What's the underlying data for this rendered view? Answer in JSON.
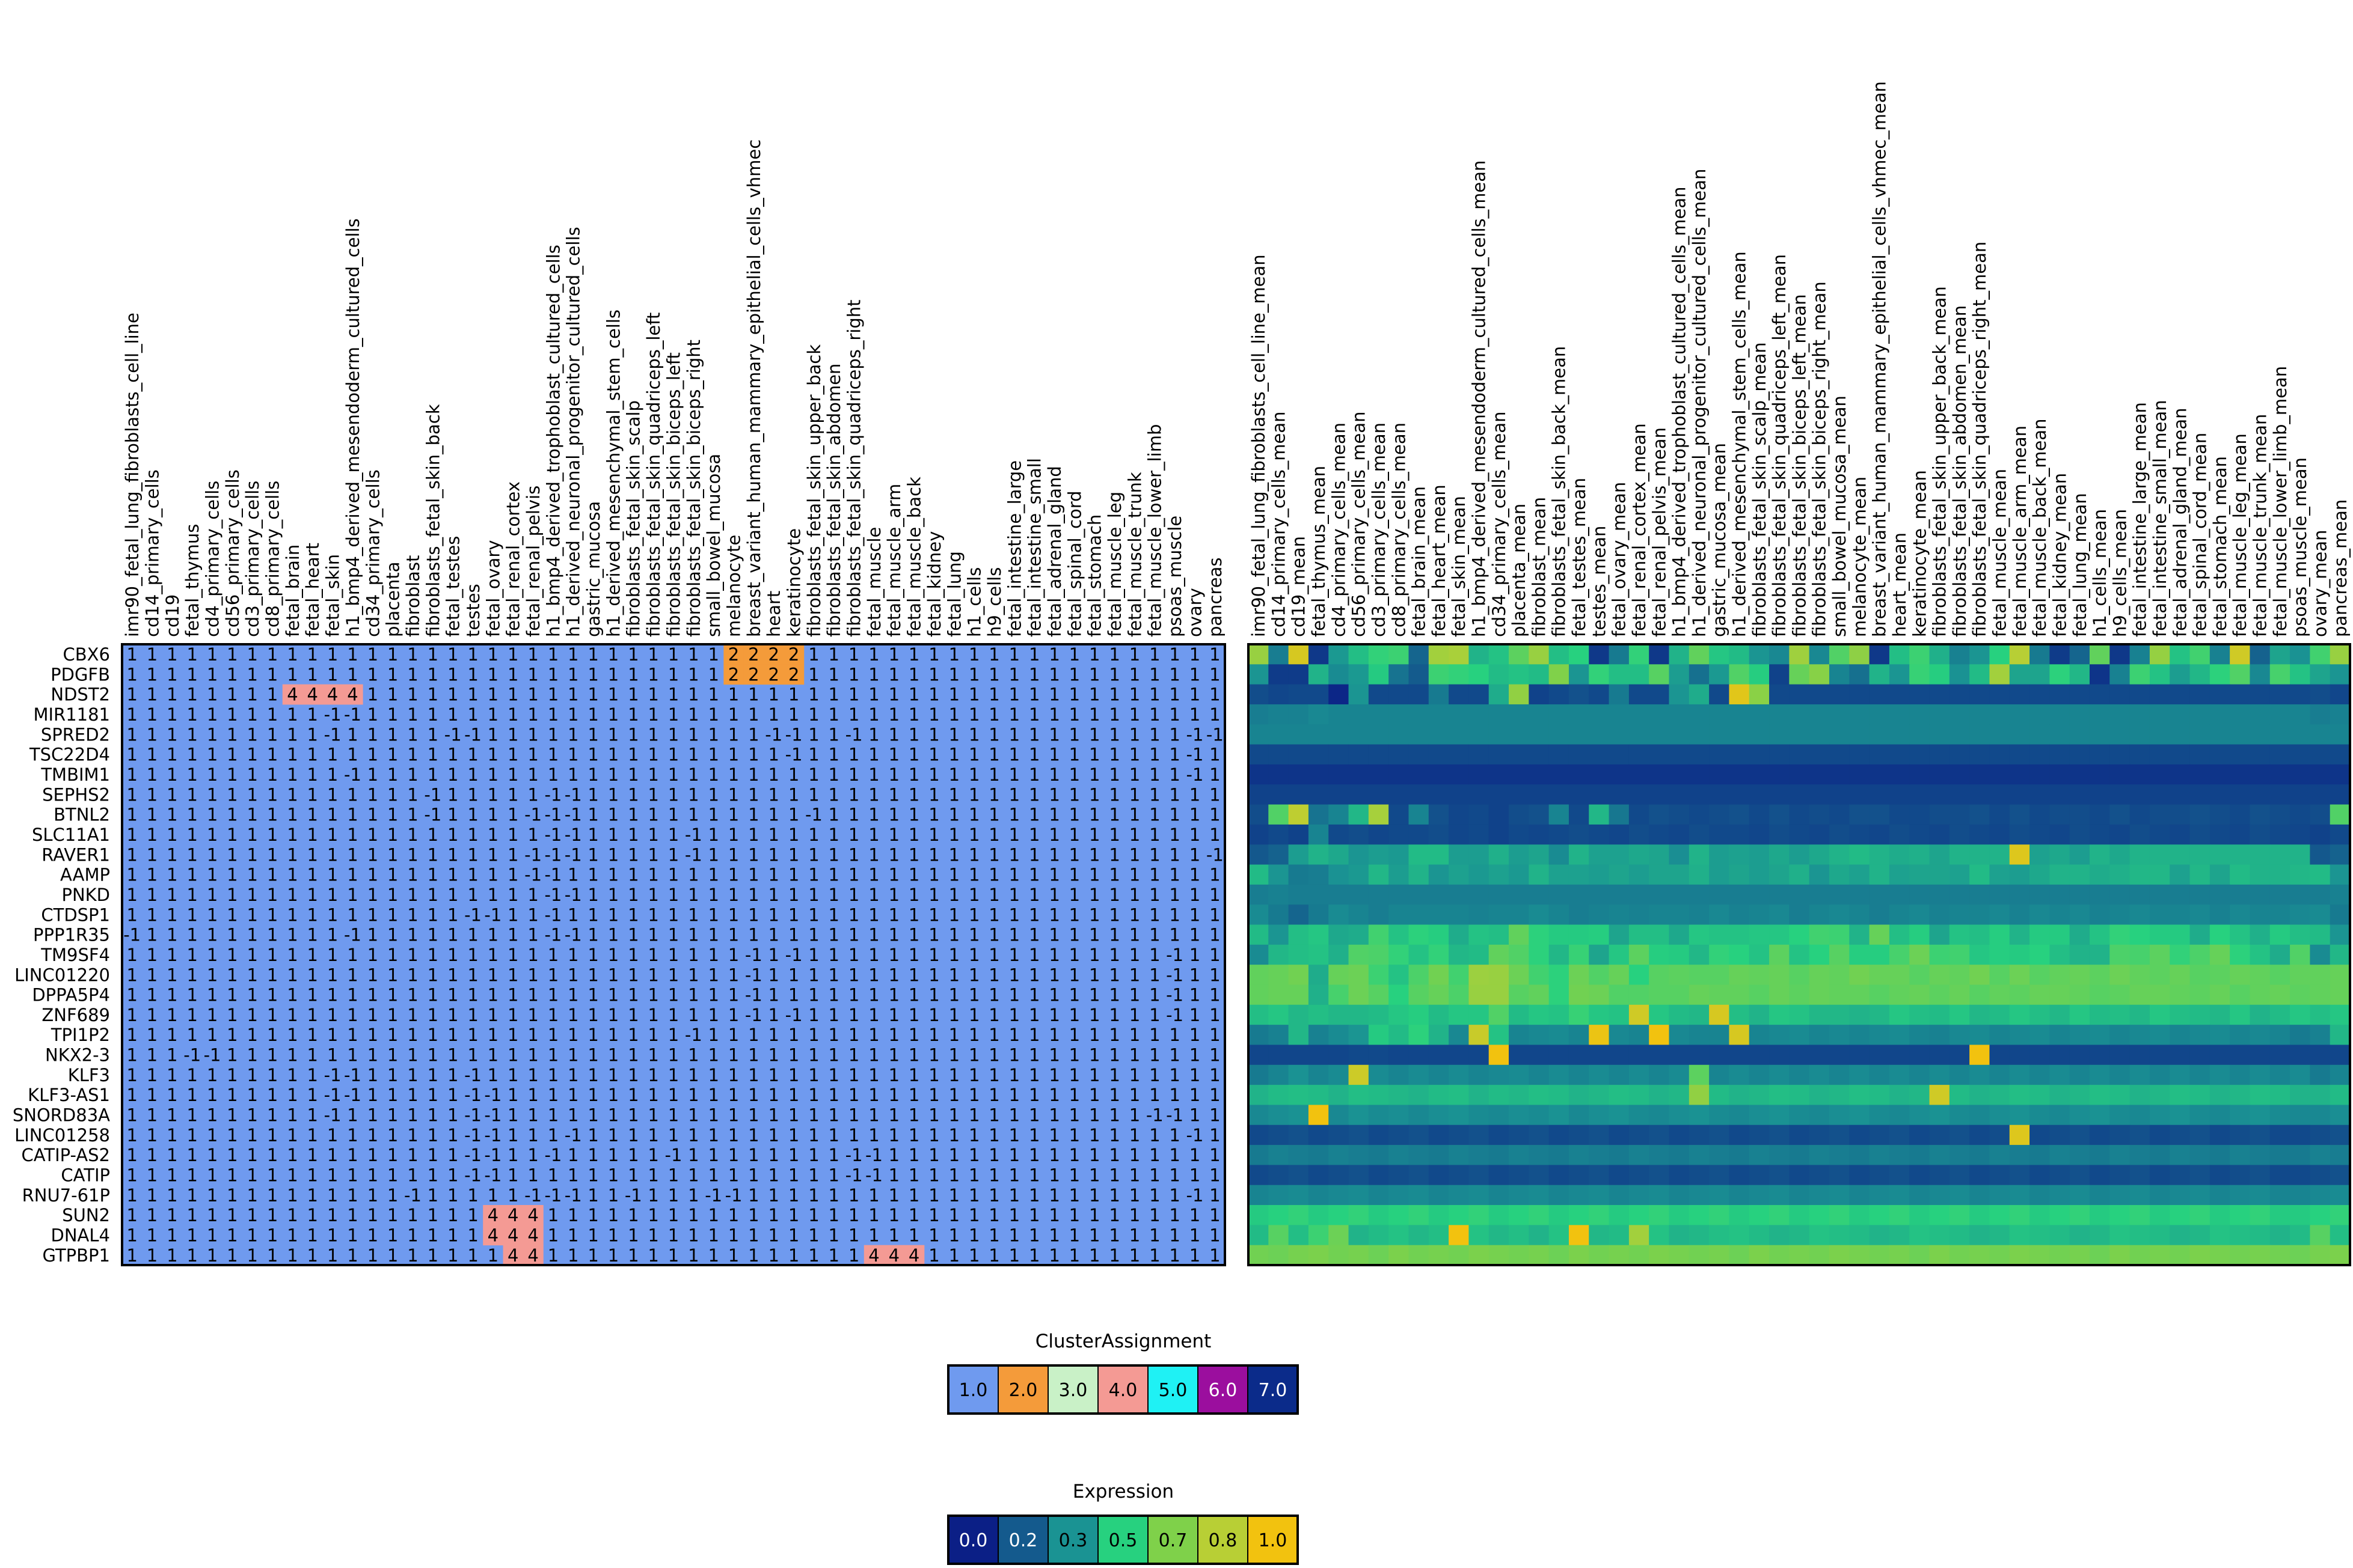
{
  "chart_data": [
    {
      "type": "heatmap",
      "title": "",
      "rows": [
        "CBX6",
        "PDGFB",
        "NDST2",
        "MIR1181",
        "SPRED2",
        "TSC22D4",
        "TMBIM1",
        "SEPHS2",
        "BTNL2",
        "SLC11A1",
        "RAVER1",
        "AAMP",
        "PNKD",
        "CTDSP1",
        "PPP1R35",
        "TM9SF4",
        "LINC01220",
        "DPPA5P4",
        "ZNF689",
        "TPI1P2",
        "NKX2-3",
        "KLF3",
        "KLF3-AS1",
        "SNORD83A",
        "LINC01258",
        "CATIP-AS2",
        "CATIP",
        "RNU7-61P",
        "SUN2",
        "DNAL4",
        "GTPBP1"
      ],
      "columns": [
        "imr90_fetal_lung_fibroblasts_cell_line",
        "cd14_primary_cells",
        "cd19",
        "fetal_thymus",
        "cd4_primary_cells",
        "cd56_primary_cells",
        "cd3_primary_cells",
        "cd8_primary_cells",
        "fetal_brain",
        "fetal_heart",
        "fetal_skin",
        "h1_bmp4_derived_mesendoderm_cultured_cells",
        "cd34_primary_cells",
        "placenta",
        "fibroblast",
        "fibroblasts_fetal_skin_back",
        "fetal_testes",
        "testes",
        "fetal_ovary",
        "fetal_renal_cortex",
        "fetal_renal_pelvis",
        "h1_bmp4_derived_trophoblast_cultured_cells",
        "h1_derived_neuronal_progenitor_cultured_cells",
        "gastric_mucosa",
        "h1_derived_mesenchymal_stem_cells",
        "fibroblasts_fetal_skin_scalp",
        "fibroblasts_fetal_skin_quadriceps_left",
        "fibroblasts_fetal_skin_biceps_left",
        "fibroblasts_fetal_skin_biceps_right",
        "small_bowel_mucosa",
        "melanocyte",
        "breast_variant_human_mammary_epithelial_cells_vhmec",
        "heart",
        "keratinocyte",
        "fibroblasts_fetal_skin_upper_back",
        "fibroblasts_fetal_skin_abdomen",
        "fibroblasts_fetal_skin_quadriceps_right",
        "fetal_muscle",
        "fetal_muscle_arm",
        "fetal_muscle_back",
        "fetal_kidney",
        "fetal_lung",
        "h1_cells",
        "h9_cells",
        "fetal_intestine_large",
        "fetal_intestine_small",
        "fetal_adrenal_gland",
        "fetal_spinal_cord",
        "fetal_stomach",
        "fetal_muscle_leg",
        "fetal_muscle_trunk",
        "fetal_muscle_lower_limb",
        "psoas_muscle",
        "ovary",
        "pancreas"
      ],
      "cell_label_default": "1",
      "cell_label_exceptions": [
        [
          0,
          30,
          "2"
        ],
        [
          0,
          31,
          "2"
        ],
        [
          0,
          32,
          "2"
        ],
        [
          0,
          33,
          "2"
        ],
        [
          1,
          30,
          "2"
        ],
        [
          1,
          31,
          "2"
        ],
        [
          1,
          32,
          "2"
        ],
        [
          1,
          33,
          "2"
        ],
        [
          2,
          8,
          "4"
        ],
        [
          2,
          9,
          "4"
        ],
        [
          2,
          10,
          "4"
        ],
        [
          2,
          11,
          "4"
        ],
        [
          28,
          18,
          "4"
        ],
        [
          28,
          19,
          "4"
        ],
        [
          28,
          20,
          "4"
        ],
        [
          29,
          18,
          "4"
        ],
        [
          29,
          19,
          "4"
        ],
        [
          29,
          20,
          "4"
        ],
        [
          30,
          19,
          "4"
        ],
        [
          30,
          20,
          "4"
        ],
        [
          30,
          37,
          "4"
        ],
        [
          30,
          38,
          "4"
        ],
        [
          30,
          39,
          "4"
        ]
      ],
      "cell_cluster_exceptions": [
        [
          0,
          30,
          2
        ],
        [
          0,
          31,
          2
        ],
        [
          0,
          32,
          2
        ],
        [
          0,
          33,
          2
        ],
        [
          1,
          30,
          2
        ],
        [
          1,
          31,
          2
        ],
        [
          1,
          32,
          2
        ],
        [
          1,
          33,
          2
        ],
        [
          2,
          8,
          4
        ],
        [
          2,
          9,
          4
        ],
        [
          2,
          10,
          4
        ],
        [
          2,
          11,
          4
        ],
        [
          28,
          18,
          4
        ],
        [
          28,
          19,
          4
        ],
        [
          28,
          20,
          4
        ],
        [
          29,
          18,
          4
        ],
        [
          29,
          19,
          4
        ],
        [
          29,
          20,
          4
        ],
        [
          30,
          19,
          4
        ],
        [
          30,
          20,
          4
        ],
        [
          30,
          37,
          4
        ],
        [
          30,
          38,
          4
        ],
        [
          30,
          39,
          4
        ]
      ],
      "negative_cells": [
        [
          3,
          10
        ],
        [
          3,
          11
        ],
        [
          4,
          10
        ],
        [
          4,
          16
        ],
        [
          4,
          17
        ],
        [
          4,
          32
        ],
        [
          4,
          33
        ],
        [
          4,
          36
        ],
        [
          4,
          53
        ],
        [
          4,
          54
        ],
        [
          5,
          33
        ],
        [
          5,
          53
        ],
        [
          6,
          11
        ],
        [
          6,
          53
        ],
        [
          7,
          15
        ],
        [
          7,
          21
        ],
        [
          7,
          22
        ],
        [
          8,
          15
        ],
        [
          8,
          20
        ],
        [
          8,
          21
        ],
        [
          8,
          22
        ],
        [
          8,
          34
        ],
        [
          9,
          21
        ],
        [
          9,
          22
        ],
        [
          9,
          28
        ],
        [
          10,
          20
        ],
        [
          10,
          21
        ],
        [
          10,
          22
        ],
        [
          10,
          28
        ],
        [
          10,
          54
        ],
        [
          11,
          20
        ],
        [
          11,
          21
        ],
        [
          12,
          21
        ],
        [
          12,
          22
        ],
        [
          13,
          17
        ],
        [
          13,
          18
        ],
        [
          13,
          21
        ],
        [
          14,
          0
        ],
        [
          14,
          11
        ],
        [
          14,
          21
        ],
        [
          14,
          22
        ],
        [
          15,
          31
        ],
        [
          15,
          33
        ],
        [
          15,
          52
        ],
        [
          16,
          31
        ],
        [
          16,
          52
        ],
        [
          17,
          31
        ],
        [
          17,
          52
        ],
        [
          18,
          31
        ],
        [
          18,
          33
        ],
        [
          18,
          52
        ],
        [
          19,
          28
        ],
        [
          20,
          3
        ],
        [
          20,
          4
        ],
        [
          21,
          10
        ],
        [
          21,
          11
        ],
        [
          21,
          17
        ],
        [
          22,
          10
        ],
        [
          22,
          11
        ],
        [
          22,
          17
        ],
        [
          22,
          18
        ],
        [
          23,
          10
        ],
        [
          23,
          17
        ],
        [
          23,
          18
        ],
        [
          23,
          51
        ],
        [
          23,
          52
        ],
        [
          24,
          17
        ],
        [
          24,
          18
        ],
        [
          24,
          22
        ],
        [
          24,
          53
        ],
        [
          25,
          17
        ],
        [
          25,
          18
        ],
        [
          25,
          21
        ],
        [
          25,
          27
        ],
        [
          25,
          36
        ],
        [
          25,
          37
        ],
        [
          26,
          17
        ],
        [
          26,
          18
        ],
        [
          26,
          36
        ],
        [
          26,
          37
        ],
        [
          27,
          14
        ],
        [
          27,
          20
        ],
        [
          27,
          21
        ],
        [
          27,
          22
        ],
        [
          27,
          25
        ],
        [
          27,
          29
        ],
        [
          27,
          30
        ],
        [
          27,
          53
        ]
      ]
    },
    {
      "type": "heatmap",
      "title": "",
      "columns": [
        "imr90_fetal_lung_fibroblasts_cell_line_mean",
        "cd14_primary_cells_mean",
        "cd19_mean",
        "fetal_thymus_mean",
        "cd4_primary_cells_mean",
        "cd56_primary_cells_mean",
        "cd3_primary_cells_mean",
        "cd8_primary_cells_mean",
        "fetal_brain_mean",
        "fetal_heart_mean",
        "fetal_skin_mean",
        "h1_bmp4_derived_mesendoderm_cultured_cells_mean",
        "cd34_primary_cells_mean",
        "placenta_mean",
        "fibroblast_mean",
        "fibroblasts_fetal_skin_back_mean",
        "fetal_testes_mean",
        "testes_mean",
        "fetal_ovary_mean",
        "fetal_renal_cortex_mean",
        "fetal_renal_pelvis_mean",
        "h1_bmp4_derived_trophoblast_cultured_cells_mean",
        "h1_derived_neuronal_progenitor_cultured_cells_mean",
        "gastric_mucosa_mean",
        "h1_derived_mesenchymal_stem_cells_mean",
        "fibroblasts_fetal_skin_scalp_mean",
        "fibroblasts_fetal_skin_quadriceps_left_mean",
        "fibroblasts_fetal_skin_biceps_left_mean",
        "fibroblasts_fetal_skin_biceps_right_mean",
        "small_bowel_mucosa_mean",
        "melanocyte_mean",
        "breast_variant_human_mammary_epithelial_cells_vhmec_mean",
        "heart_mean",
        "keratinocyte_mean",
        "fibroblasts_fetal_skin_upper_back_mean",
        "fibroblasts_fetal_skin_abdomen_mean",
        "fibroblasts_fetal_skin_quadriceps_right_mean",
        "fetal_muscle_mean",
        "fetal_muscle_arm_mean",
        "fetal_muscle_back_mean",
        "fetal_kidney_mean",
        "fetal_lung_mean",
        "h1_cells_mean",
        "h9_cells_mean",
        "fetal_intestine_large_mean",
        "fetal_intestine_small_mean",
        "fetal_adrenal_gland_mean",
        "fetal_spinal_cord_mean",
        "fetal_stomach_mean",
        "fetal_muscle_leg_mean",
        "fetal_muscle_trunk_mean",
        "fetal_muscle_lower_limb_mean",
        "psoas_muscle_mean",
        "ovary_mean",
        "pancreas_mean"
      ],
      "values_rows": [
        "4a1b5c07232d3436144d4f2a2e3c4a2d32071a34072a3d2f2c221e4c1e3a47072d36291c2232531a08143d071c492e371c5a13262137",
        "2208082a1f233018113634322c2e2c4322342d2d3b2417233a310a3e451d172a223531212c4d2626332b061c362e242b333a1e382e26",
        "0d0b0c0c02220c0c0c1a0c0c28480a0c0e0c1a0c0c22280c5f460c0c0c0c0c0c0c0c0c0c0c0c0c0c0c0c0c0c0c0c0c0c0c0c0c0c0c",
        "1b1c1c1e1d1d1d1d1d1d1d1d1d1d1d1d1d1d1d1d1d1d1d1d1d1d1d1d1d1d1d1d1d1d1d1d1d1d1d1d1d1d1d1d1d1d1d1d1d1d1d1d1d",
        "1d1d1d1d1d1d1d1d1d1d1d1d1d1d1d1d1d1d1d1d1d1d1d1d1d1d1d1d1d1d1d1d1d1d1d1d1d1d1d1d1d1d1d1d1d1d1d1d1d1d1d1d1d",
        "0c0c0c0c0c0c0c0c0c0c0c0c0c0c0c0c0c0c0c0c0c0c0c0c0c0c0c0c0c0c0c0c0c0c0c0c0c0c0c0c0c0c0c0c0c0c0c0c0c0c0c0c0c",
        "0606060606060606060606060606060606060606060606060606060606060606060606060606060606060606060606060606060606",
        "0a0a0a0a0a0a0a0a0a0a0a0a0a0a0a0a0a0a0a0a0a0a0a0a0a0a0a0a0a0a0a0a0a0a0a0a0a0a0a0a0a0a0a0a0a0a0a0a0a0a0a0a0a",
        "0d3a55181d2b4e0c1d0e0b0c0a0d0e1d0c2b190c0e0d0c0d0e0c0e0c0d0c0e0e0c0c0d0d0e0c0e0c0d0d0c0e0c0d0d0e0d0c0e0d0c",
        "0a0c0a1d0c0d0b0c0c0d0b0c0a0c0b0c0d0c0b0d0c0b0d0c0c0b0d0c0b0d0c0b0d0c0b0d0c0b0d0c0b0d0c0b0d0c0b0d0c0b0d0c0b",
        "1013242a272224232c2c24242924261f2a25252726202a2425242724272a2c2a2829262a2a2a5e2527242a272a2a2a2a2a2a2a2a2a",
        "2c221a1b21232b242a22252325232a252524262426262924262426292227252a252626252c2524272a2a28292b2b252b262c2a2a2b",
        "1b1c1b1b1b1b1b1b1b1b1b1b1b1b1b1b1b1b1b1b1b1b1b1b1b1b1b1b1b1b1b1b1b1b1b1b1b1b1b1b1b1b1b1b1b1b1b1b1b1b1b1b1b",
        "1f1a141a1f1d1b1d1d1d1d1c1d1d1f1d1b1c1d1c1d1d1c1e1c1d1e1b1d1e1d1b1d1e1c1d1d1e1c1e1d1e1c1d1e1d1d1e1c1e1d1d1e",
        "2c222d2f2728372e3331282e2d3d33303031262d2d272f2e2e2f2f3237362a3e2d31262e2d312a3030282e3432303028322e29302d",
        "1f2b2d2e293a39342e342b2c3d3a332b35262f3c31302b34322e3c2e323b3131383f36372f3130322d2a2a39383c34393e332e283a",
        "3d3e40283e3f362e3940374b4a3f37333f3a3e323b3c3b3b3e3d3e3b3e3d403e3e3b3e3d403b3f3b3d3e3c3f3d3c3e3b3c3e3d3b3d",
        "3d3e3e29383f3b323b3e394a4a3b3d33403f3a3a3b3b3e3d3d3b3e3c3e3d3d3b3d3e3c3e3b3d3c3e3e3d3b3c3e3e3d3c3e3b3d3e3c",
        "2d2f2b2d2b2b2c2f312c2f2f3a2c2f2e352f2e5a2f2c2b5c2d2a2f2e2b2b2a2b2f2d2c2f2b2c2f2d2b2f2c2d2b2f2d2c2b2f2a2c2f",
        "1a1c2b1c1f22302c332a1e582e1d1e1f1d621e1d661e1d1d5c1d1e1f1d1e1d1e1f1d1c1e1f1d1e1f1d1e1f1d1e1f1d1e1f1d1e1d",
        "0b0b0b0b0b0c0c0b0b0b0b0b6b0b0b0b0b0b0b0b0b0b0b0b0b0b0b0b0b0b0b0b0b0b0b0b6c0b0b0b0b0b0b0b0b0b0b0b0b0b0b0b",
        "1a1d211d1f591f1d1f1d1f1d1e1f1d1f1d1f1d1f1d1f3c1d1f1d1f1d1f1d1f1d1f1d1f1d1f1d1f1d1f1d1f1d1f1d1f1d1f1d1f1d1f",
        "2a2c2d2c2a2d2c2b2a2c2d2a2c2b2d2c2a2b2d2c2a2b482c2a2b2d2c2a2b2d2c2a2b5a2c2a2b2d2c2a2b2d2c2a2b2d2c2a2b2d2c2a",
        "1e20216c1e211f201e20211f1e201f211e20211f1e20211f1e20211f1e20211f1e20211f1e20211f1e20211f1e20211f1e20211f1e",
        "0c0d0e0c0d0e0c0d0e0c0d0e0c0d0e0c0d0e0c0d0e0c0d0e0c0d0e0c0d0e0c0d0e0c0d0e0c0d5e0c0d0e0c0d0e0c0d0e0c0d0e0c",
        "1a1c1b1a1c1b1a1c1b1a1c1b1a1c1b1a1c1b1a1c1b1a1c1b1a1c1b1a1c1b1a1c1b1a1c1b1a1c1b1a1c1b1a1c1b1a1c1b1a1c1b1a",
        "0c0d0e0c0d0e0c0d0e0c0d0e0c0d0e0c0d0e0c0d0e0c0d0e0c0d0e0c0d0e0c0d0e0c0d0e0c0d0e0c0d0e0c0d0e0c0d0e0c0d0e0c",
        "1d1e1f1d1e1f1d1e1f1d1e1f1d1e1f1d1e1f1d1e1f1d1e1f1d1e1f1d1e1f1d1e1f1d1e1f1d1e1f1d1e1f1d1e1f1d1e1f1d1e1f1d",
        "30323430323430323430323430323430323430323430323430323430323430323430323430323430323430323430323430323430",
        "2c3b2d363f2a2c2e2b2d652e2b2d2a2e672b2c4d2e2a2b2d2e2c2a2b2e2d2c2a2b2e2d2c2a2b2e2d2c2a2b2e2d2c2a2b2e2d2c2a",
        "403f414240413f42404140424140413f42404140424140413f42404140424140413f42404140424140413f4240414042414041"
      ],
      "values_scale": "hex byte / 100",
      "vmin": 0.0,
      "vmax": 1.0
    }
  ],
  "legends": {
    "cluster": {
      "title": "ClusterAssignment",
      "items": [
        {
          "label": "1.0",
          "color": "#6f9aef"
        },
        {
          "label": "2.0",
          "color": "#f49b3a"
        },
        {
          "label": "3.0",
          "color": "#c9f1c7"
        },
        {
          "label": "4.0",
          "color": "#f49a94"
        },
        {
          "label": "5.0",
          "color": "#1ff1f4"
        },
        {
          "label": "6.0",
          "color": "#9b0e9e"
        },
        {
          "label": "7.0",
          "color": "#0b2b8a"
        }
      ]
    },
    "expression": {
      "title": "Expression",
      "items": [
        {
          "label": "0.0",
          "color": "#0b1f86"
        },
        {
          "label": "0.2",
          "color": "#145a8d"
        },
        {
          "label": "0.3",
          "color": "#1a9393"
        },
        {
          "label": "0.5",
          "color": "#27d17f"
        },
        {
          "label": "0.7",
          "color": "#7fd14a"
        },
        {
          "label": "0.8",
          "color": "#b8cf35"
        },
        {
          "label": "1.0",
          "color": "#f2c20f"
        }
      ]
    }
  }
}
